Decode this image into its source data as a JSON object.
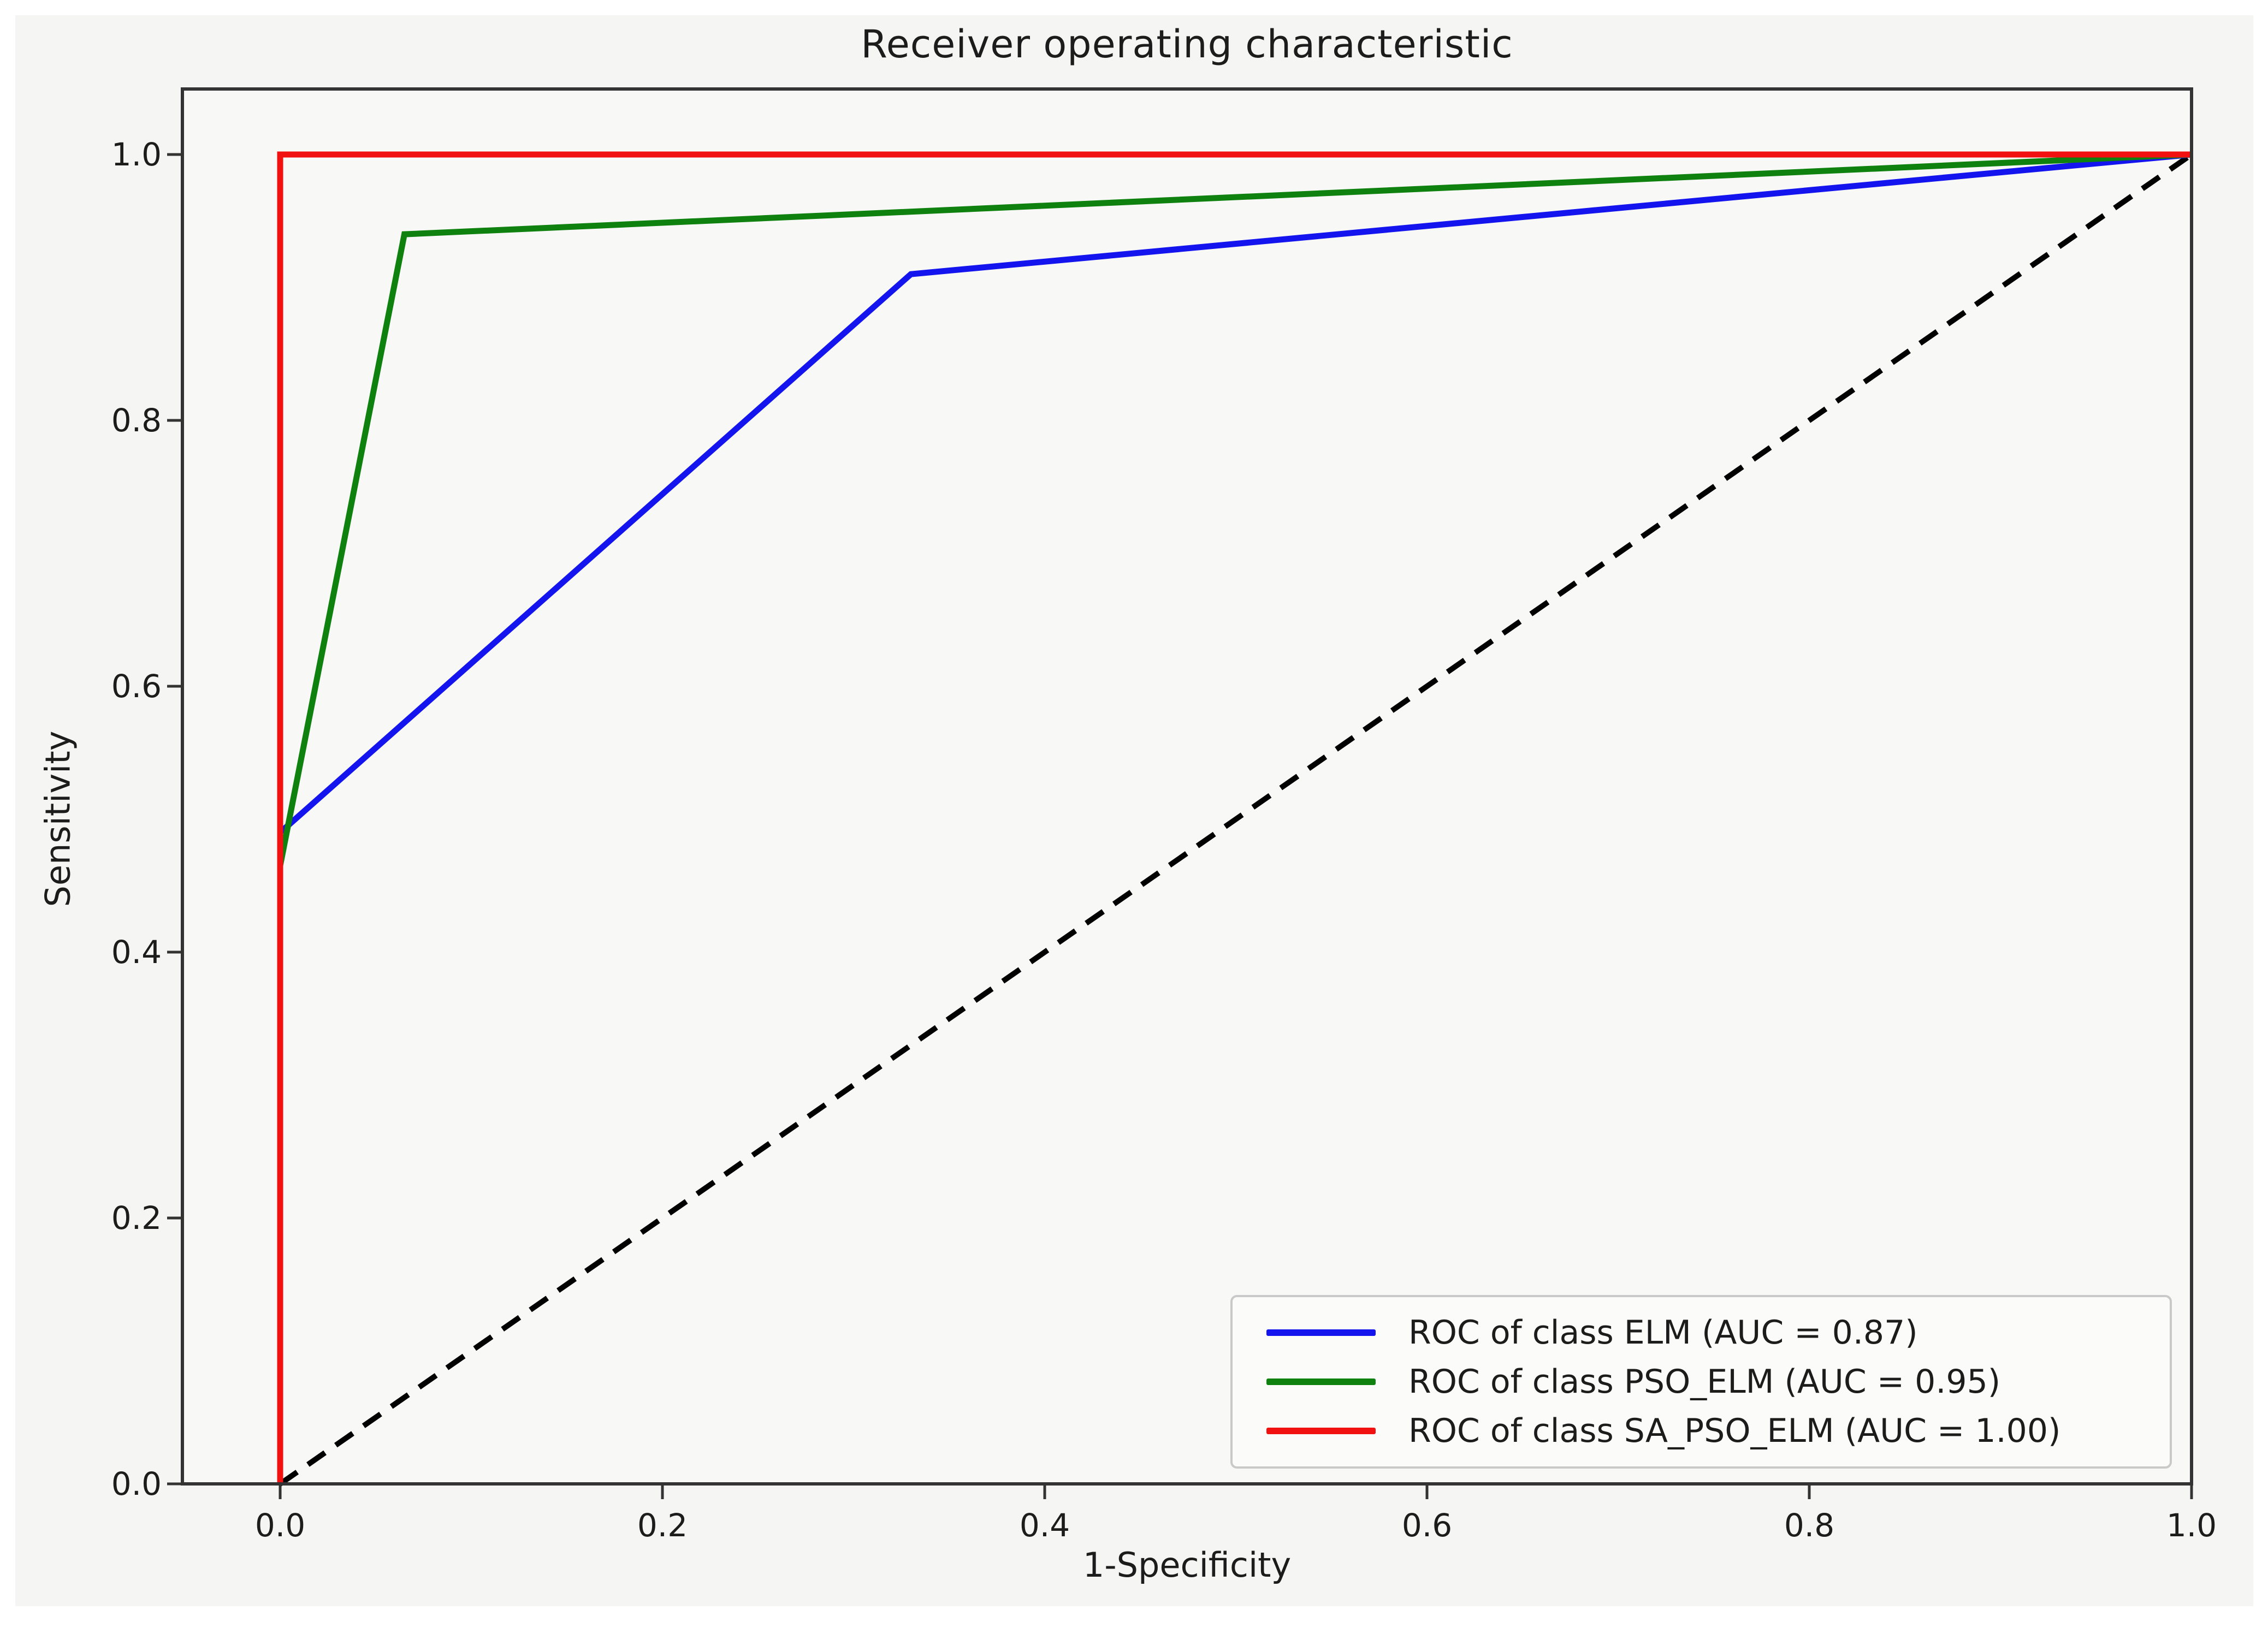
{
  "figure": {
    "title": "Receiver operating characteristic",
    "xlabel": "1-Specificity",
    "ylabel": "Sensitivity",
    "x_tick_labels": [
      "0.0",
      "0.2",
      "0.4",
      "0.6",
      "0.8",
      "1.0"
    ],
    "y_tick_labels": [
      "0.0",
      "0.2",
      "0.4",
      "0.6",
      "0.8",
      "1.0"
    ]
  },
  "legend": {
    "items": [
      {
        "label": "ROC of class ELM (AUC = 0.87)"
      },
      {
        "label": "ROC of class PSO_ELM (AUC = 0.95)"
      },
      {
        "label": "ROC of class SA_PSO_ELM (AUC = 1.00)"
      }
    ]
  },
  "colors": {
    "elm": "#1414ee",
    "pso_elm": "#0f810f",
    "sa_pso_elm": "#f21111",
    "diagonal": "#000000",
    "spine": "#333333",
    "figure_bg": "#f5f5f3",
    "axes_bg": "#f8f8f6"
  },
  "chart_data": {
    "type": "line",
    "title": "Receiver operating characteristic",
    "xlabel": "1-Specificity",
    "ylabel": "Sensitivity",
    "xlim": [
      -0.05,
      1.0
    ],
    "ylim": [
      0.0,
      1.05
    ],
    "x_ticks": [
      0.0,
      0.2,
      0.4,
      0.6,
      0.8,
      1.0
    ],
    "y_ticks": [
      0.0,
      0.2,
      0.4,
      0.6,
      0.8,
      1.0
    ],
    "grid": false,
    "legend_position": "lower right",
    "series": [
      {
        "id": "elm",
        "name": "ROC of class ELM (AUC = 0.87)",
        "auc": 0.87,
        "style": "solid",
        "points": [
          [
            0.0,
            0.0
          ],
          [
            0.0,
            0.49
          ],
          [
            0.33,
            0.91
          ],
          [
            1.0,
            1.0
          ]
        ]
      },
      {
        "id": "pso_elm",
        "name": "ROC of class PSO_ELM (AUC = 0.95)",
        "auc": 0.95,
        "style": "solid",
        "points": [
          [
            0.0,
            0.0
          ],
          [
            0.0,
            0.465
          ],
          [
            0.065,
            0.94
          ],
          [
            1.0,
            1.0
          ]
        ]
      },
      {
        "id": "sa_pso_elm",
        "name": "ROC of class SA_PSO_ELM (AUC = 1.00)",
        "auc": 1.0,
        "style": "solid",
        "points": [
          [
            0.0,
            0.0
          ],
          [
            0.0,
            1.0
          ],
          [
            1.0,
            1.0
          ]
        ]
      },
      {
        "id": "chance",
        "name": "chance-diagonal",
        "style": "dashed",
        "points": [
          [
            0.0,
            0.0
          ],
          [
            1.0,
            1.0
          ]
        ]
      }
    ]
  }
}
